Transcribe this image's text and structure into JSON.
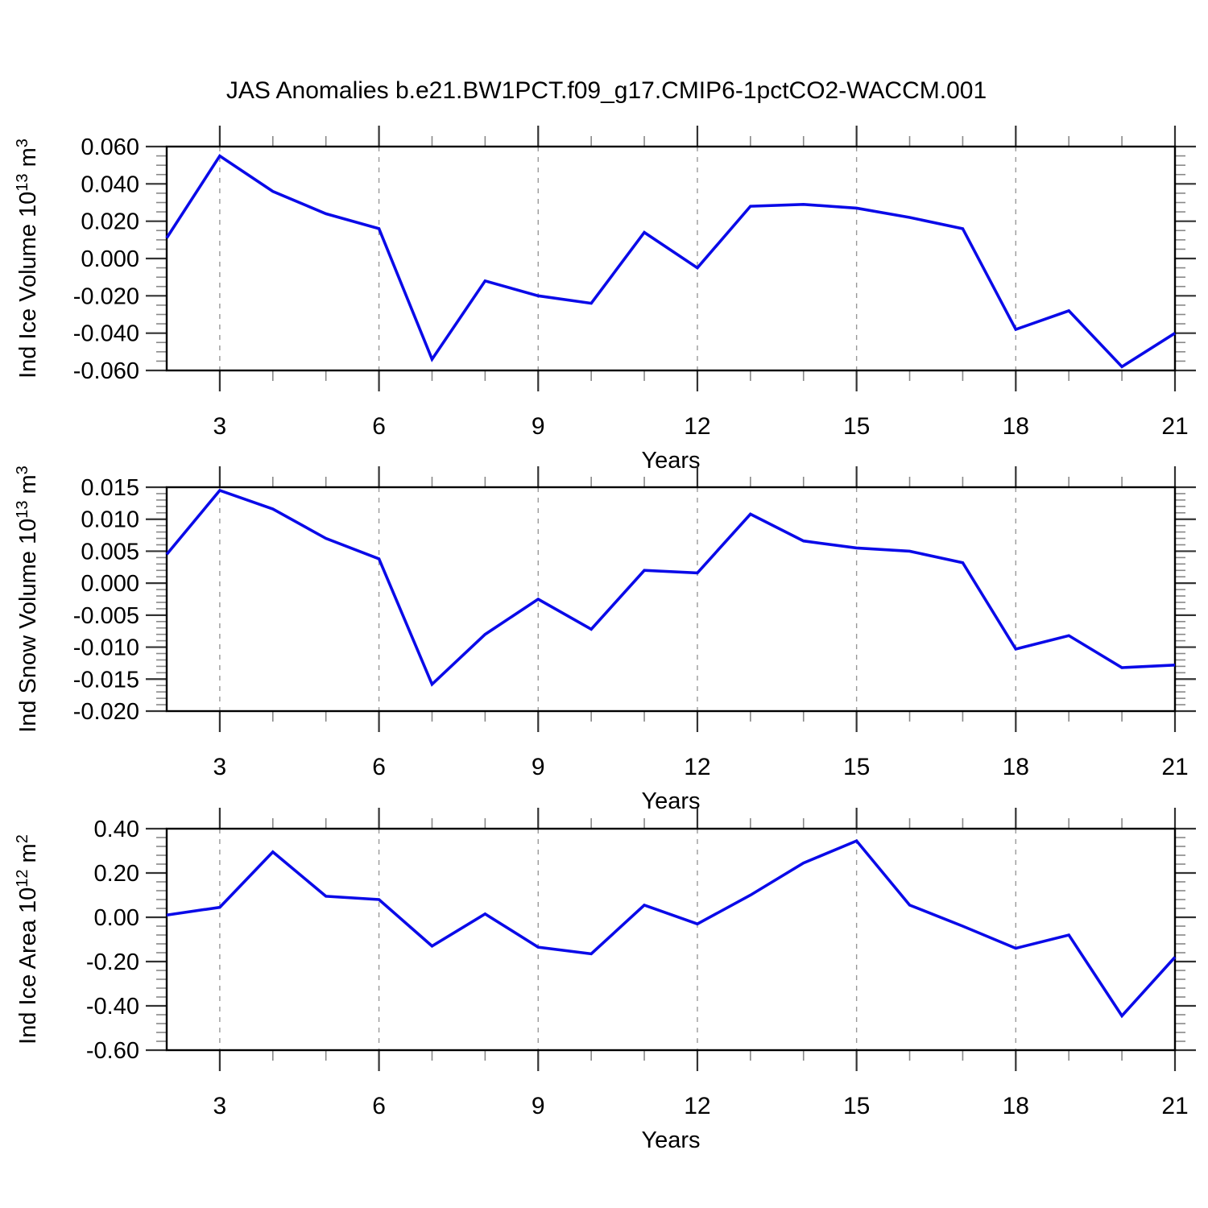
{
  "title": "JAS Anomalies b.e21.BW1PCT.f09_g17.CMIP6-1pctCO2-WACCM.001",
  "xlabel": "Years",
  "colors": {
    "line": "#0a0ae8",
    "grid": "#999999",
    "frame": "#000000",
    "major_tick": "#333333",
    "minor_tick": "#888888",
    "text": "#000000",
    "background": "#ffffff"
  },
  "xticks": {
    "values": [
      3,
      6,
      9,
      12,
      15,
      18,
      21
    ],
    "labels": [
      "3",
      "6",
      "9",
      "12",
      "15",
      "18",
      "21"
    ]
  },
  "chart_data": [
    {
      "type": "line",
      "ylabel": {
        "base": "Ind Ice Volume 10",
        "exponent": "13",
        "unit_base": " m",
        "unit_exponent": "3"
      },
      "ylabel_plain": "Ind Ice Volume 10^13 m^3",
      "xlabel": "Years",
      "ylim": [
        -0.06,
        0.06
      ],
      "xlim": [
        2,
        21
      ],
      "yticks": {
        "values": [
          0.06,
          0.04,
          0.02,
          0.0,
          -0.02,
          -0.04,
          -0.06
        ],
        "labels": [
          "0.060",
          "0.040",
          "0.020",
          "0.000",
          "-0.020",
          "-0.040",
          "-0.060"
        ]
      },
      "minor_y_step": 0.005,
      "x": [
        2,
        3,
        4,
        5,
        6,
        7,
        8,
        9,
        10,
        11,
        12,
        13,
        14,
        15,
        16,
        17,
        18,
        19,
        20,
        21
      ],
      "values": [
        0.011,
        0.055,
        0.036,
        0.024,
        0.016,
        -0.054,
        -0.012,
        -0.02,
        -0.024,
        0.014,
        -0.005,
        0.028,
        0.029,
        0.027,
        0.022,
        0.016,
        -0.038,
        -0.028,
        -0.058,
        -0.04
      ],
      "grid_years": [
        3,
        6,
        9,
        12,
        15,
        18
      ],
      "legend": "none"
    },
    {
      "type": "line",
      "ylabel": {
        "base": "Ind Snow Volume 10",
        "exponent": "13",
        "unit_base": " m",
        "unit_exponent": "3"
      },
      "ylabel_plain": "Ind Snow Volume 10^13 m^3",
      "xlabel": "Years",
      "ylim": [
        -0.02,
        0.015
      ],
      "xlim": [
        2,
        21
      ],
      "yticks": {
        "values": [
          0.015,
          0.01,
          0.005,
          0.0,
          -0.005,
          -0.01,
          -0.015,
          -0.02
        ],
        "labels": [
          "0.015",
          "0.010",
          "0.005",
          "0.000",
          "-0.005",
          "-0.010",
          "-0.015",
          "-0.020"
        ]
      },
      "minor_y_step": 0.001,
      "x": [
        2,
        3,
        4,
        5,
        6,
        7,
        8,
        9,
        10,
        11,
        12,
        13,
        14,
        15,
        16,
        17,
        18,
        19,
        20,
        21
      ],
      "values": [
        0.0045,
        0.0145,
        0.0116,
        0.007,
        0.0038,
        -0.0158,
        -0.008,
        -0.0025,
        -0.0072,
        0.002,
        0.0016,
        0.0108,
        0.0066,
        0.0055,
        0.005,
        0.0032,
        -0.0103,
        -0.0082,
        -0.0132,
        -0.0128
      ],
      "grid_years": [
        3,
        6,
        9,
        12,
        15,
        18
      ],
      "legend": "none"
    },
    {
      "type": "line",
      "ylabel": {
        "base": "Ind Ice Area 10",
        "exponent": "12",
        "unit_base": " m",
        "unit_exponent": "2"
      },
      "ylabel_plain": "Ind Ice Area 10^12 m^2",
      "xlabel": "Years",
      "ylim": [
        -0.6,
        0.4
      ],
      "xlim": [
        2,
        21
      ],
      "yticks": {
        "values": [
          0.4,
          0.2,
          0.0,
          -0.2,
          -0.4,
          -0.6
        ],
        "labels": [
          "0.40",
          "0.20",
          "0.00",
          "-0.20",
          "-0.40",
          "-0.60"
        ]
      },
      "minor_y_step": 0.04,
      "x": [
        2,
        3,
        4,
        5,
        6,
        7,
        8,
        9,
        10,
        11,
        12,
        13,
        14,
        15,
        16,
        17,
        18,
        19,
        20,
        21
      ],
      "values": [
        0.01,
        0.045,
        0.295,
        0.095,
        0.08,
        -0.13,
        0.015,
        -0.135,
        -0.165,
        0.055,
        -0.03,
        0.1,
        0.245,
        0.345,
        0.055,
        -0.04,
        -0.14,
        -0.08,
        -0.445,
        -0.18
      ],
      "grid_years": [
        3,
        6,
        9,
        12,
        15,
        18
      ],
      "legend": "none"
    }
  ]
}
